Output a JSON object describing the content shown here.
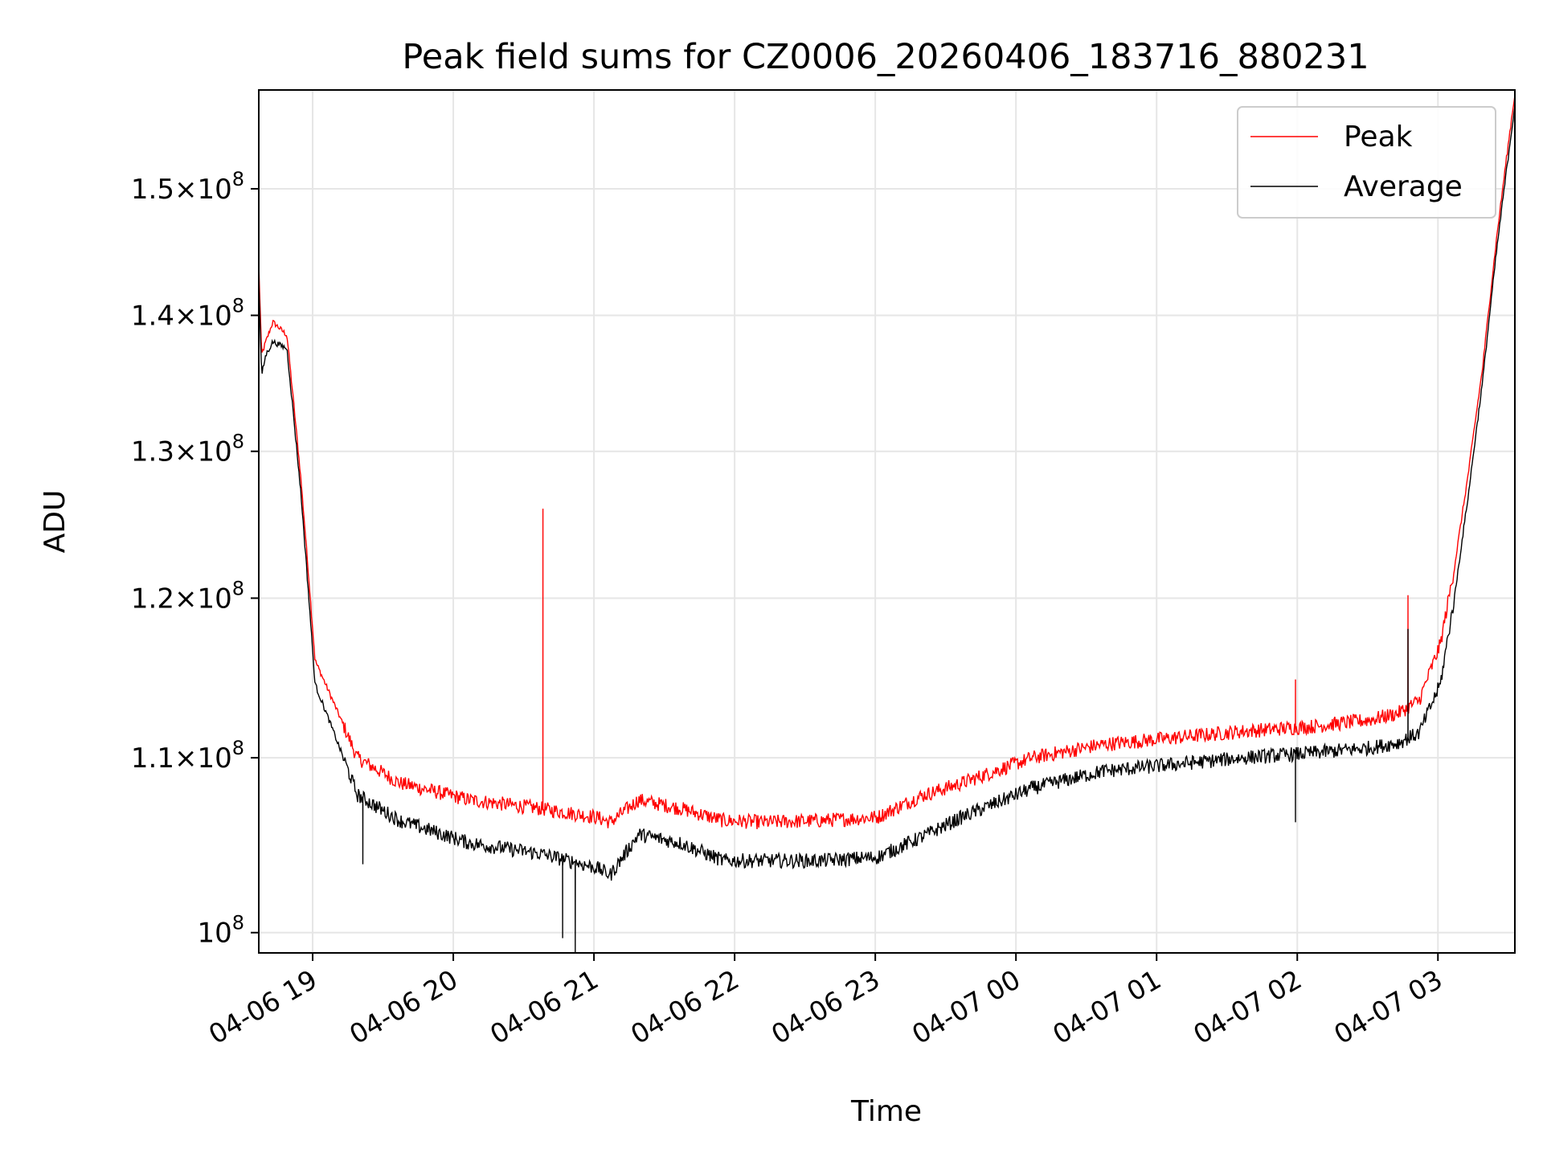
{
  "chart_data": {
    "type": "line",
    "title": "Peak field sums for CZ0006_20260406_183716_880231",
    "xlabel": "Time",
    "ylabel": "ADU",
    "x_unit": "hours since 2026-04-06 18:37",
    "xlim": [
      0,
      8.93
    ],
    "ylim": [
      98900000,
      158300000
    ],
    "y_scale": "log",
    "grid": true,
    "legend_position": "top-right",
    "x_ticks": [
      {
        "value": 0.383,
        "label": "04-06 19"
      },
      {
        "value": 1.383,
        "label": "04-06 20"
      },
      {
        "value": 2.383,
        "label": "04-06 21"
      },
      {
        "value": 3.383,
        "label": "04-06 22"
      },
      {
        "value": 4.383,
        "label": "04-06 23"
      },
      {
        "value": 5.383,
        "label": "04-07 00"
      },
      {
        "value": 6.383,
        "label": "04-07 01"
      },
      {
        "value": 7.383,
        "label": "04-07 02"
      },
      {
        "value": 8.383,
        "label": "04-07 03"
      }
    ],
    "y_ticks": [
      {
        "value": 100000000,
        "mantissa": "",
        "exponent": "8"
      },
      {
        "value": 110000000,
        "mantissa": "1.1",
        "exponent": "8"
      },
      {
        "value": 120000000,
        "mantissa": "1.2",
        "exponent": "8"
      },
      {
        "value": 130000000,
        "mantissa": "1.3",
        "exponent": "8"
      },
      {
        "value": 140000000,
        "mantissa": "1.4",
        "exponent": "8"
      },
      {
        "value": 150000000,
        "mantissa": "1.5",
        "exponent": "8"
      }
    ],
    "series": [
      {
        "name": "Peak",
        "color": "#ff0000",
        "x": [
          0,
          0.02,
          0.05,
          0.1,
          0.2,
          0.3,
          0.4,
          0.7,
          1.0,
          1.5,
          2.0,
          2.4,
          2.5,
          2.7,
          3.0,
          3.3,
          3.6,
          4.0,
          4.4,
          4.7,
          5.0,
          5.5,
          6.0,
          6.5,
          7.0,
          7.5,
          7.9,
          8.1,
          8.25,
          8.4,
          8.5,
          8.6,
          8.7,
          8.8,
          8.93
        ],
        "y": [
          144000000,
          137000000,
          138000000,
          139500000,
          138500000,
          128000000,
          116000000,
          110000000,
          108500000,
          107500000,
          107000000,
          106500000,
          106200000,
          107500000,
          107000000,
          106300000,
          106200000,
          106300000,
          106500000,
          107700000,
          108500000,
          110000000,
          110800000,
          111200000,
          111600000,
          111900000,
          112300000,
          112700000,
          113500000,
          117000000,
          122000000,
          128500000,
          136000000,
          146000000,
          158000000
        ],
        "spikes": [
          {
            "x": 2.02,
            "y": 126000000
          },
          {
            "x": 7.37,
            "y": 114800000
          },
          {
            "x": 8.17,
            "y": 120200000
          }
        ]
      },
      {
        "name": "Average",
        "color": "#000000",
        "x": [
          0,
          0.02,
          0.05,
          0.1,
          0.2,
          0.3,
          0.4,
          0.7,
          1.0,
          1.5,
          2.0,
          2.4,
          2.5,
          2.7,
          3.0,
          3.3,
          3.6,
          4.0,
          4.4,
          4.7,
          5.0,
          5.5,
          6.0,
          6.5,
          7.0,
          7.5,
          7.9,
          8.1,
          8.25,
          8.4,
          8.5,
          8.6,
          8.7,
          8.8,
          8.93
        ],
        "y": [
          143000000,
          135500000,
          137000000,
          138000000,
          137500000,
          127000000,
          114500000,
          107800000,
          106300000,
          105000000,
          104400000,
          103600000,
          103200000,
          105500000,
          105000000,
          104000000,
          104000000,
          104000000,
          104200000,
          105300000,
          106500000,
          108200000,
          109200000,
          109600000,
          110000000,
          110300000,
          110600000,
          110900000,
          111500000,
          114500000,
          120000000,
          127000000,
          135000000,
          145000000,
          157000000
        ],
        "spikes": [
          {
            "x": 2.16,
            "y": 99700000
          },
          {
            "x": 2.25,
            "y": 98900000
          },
          {
            "x": 0.74,
            "y": 103800000
          },
          {
            "x": 7.37,
            "y": 106200000
          },
          {
            "x": 8.17,
            "y": 118000000
          }
        ]
      }
    ]
  }
}
